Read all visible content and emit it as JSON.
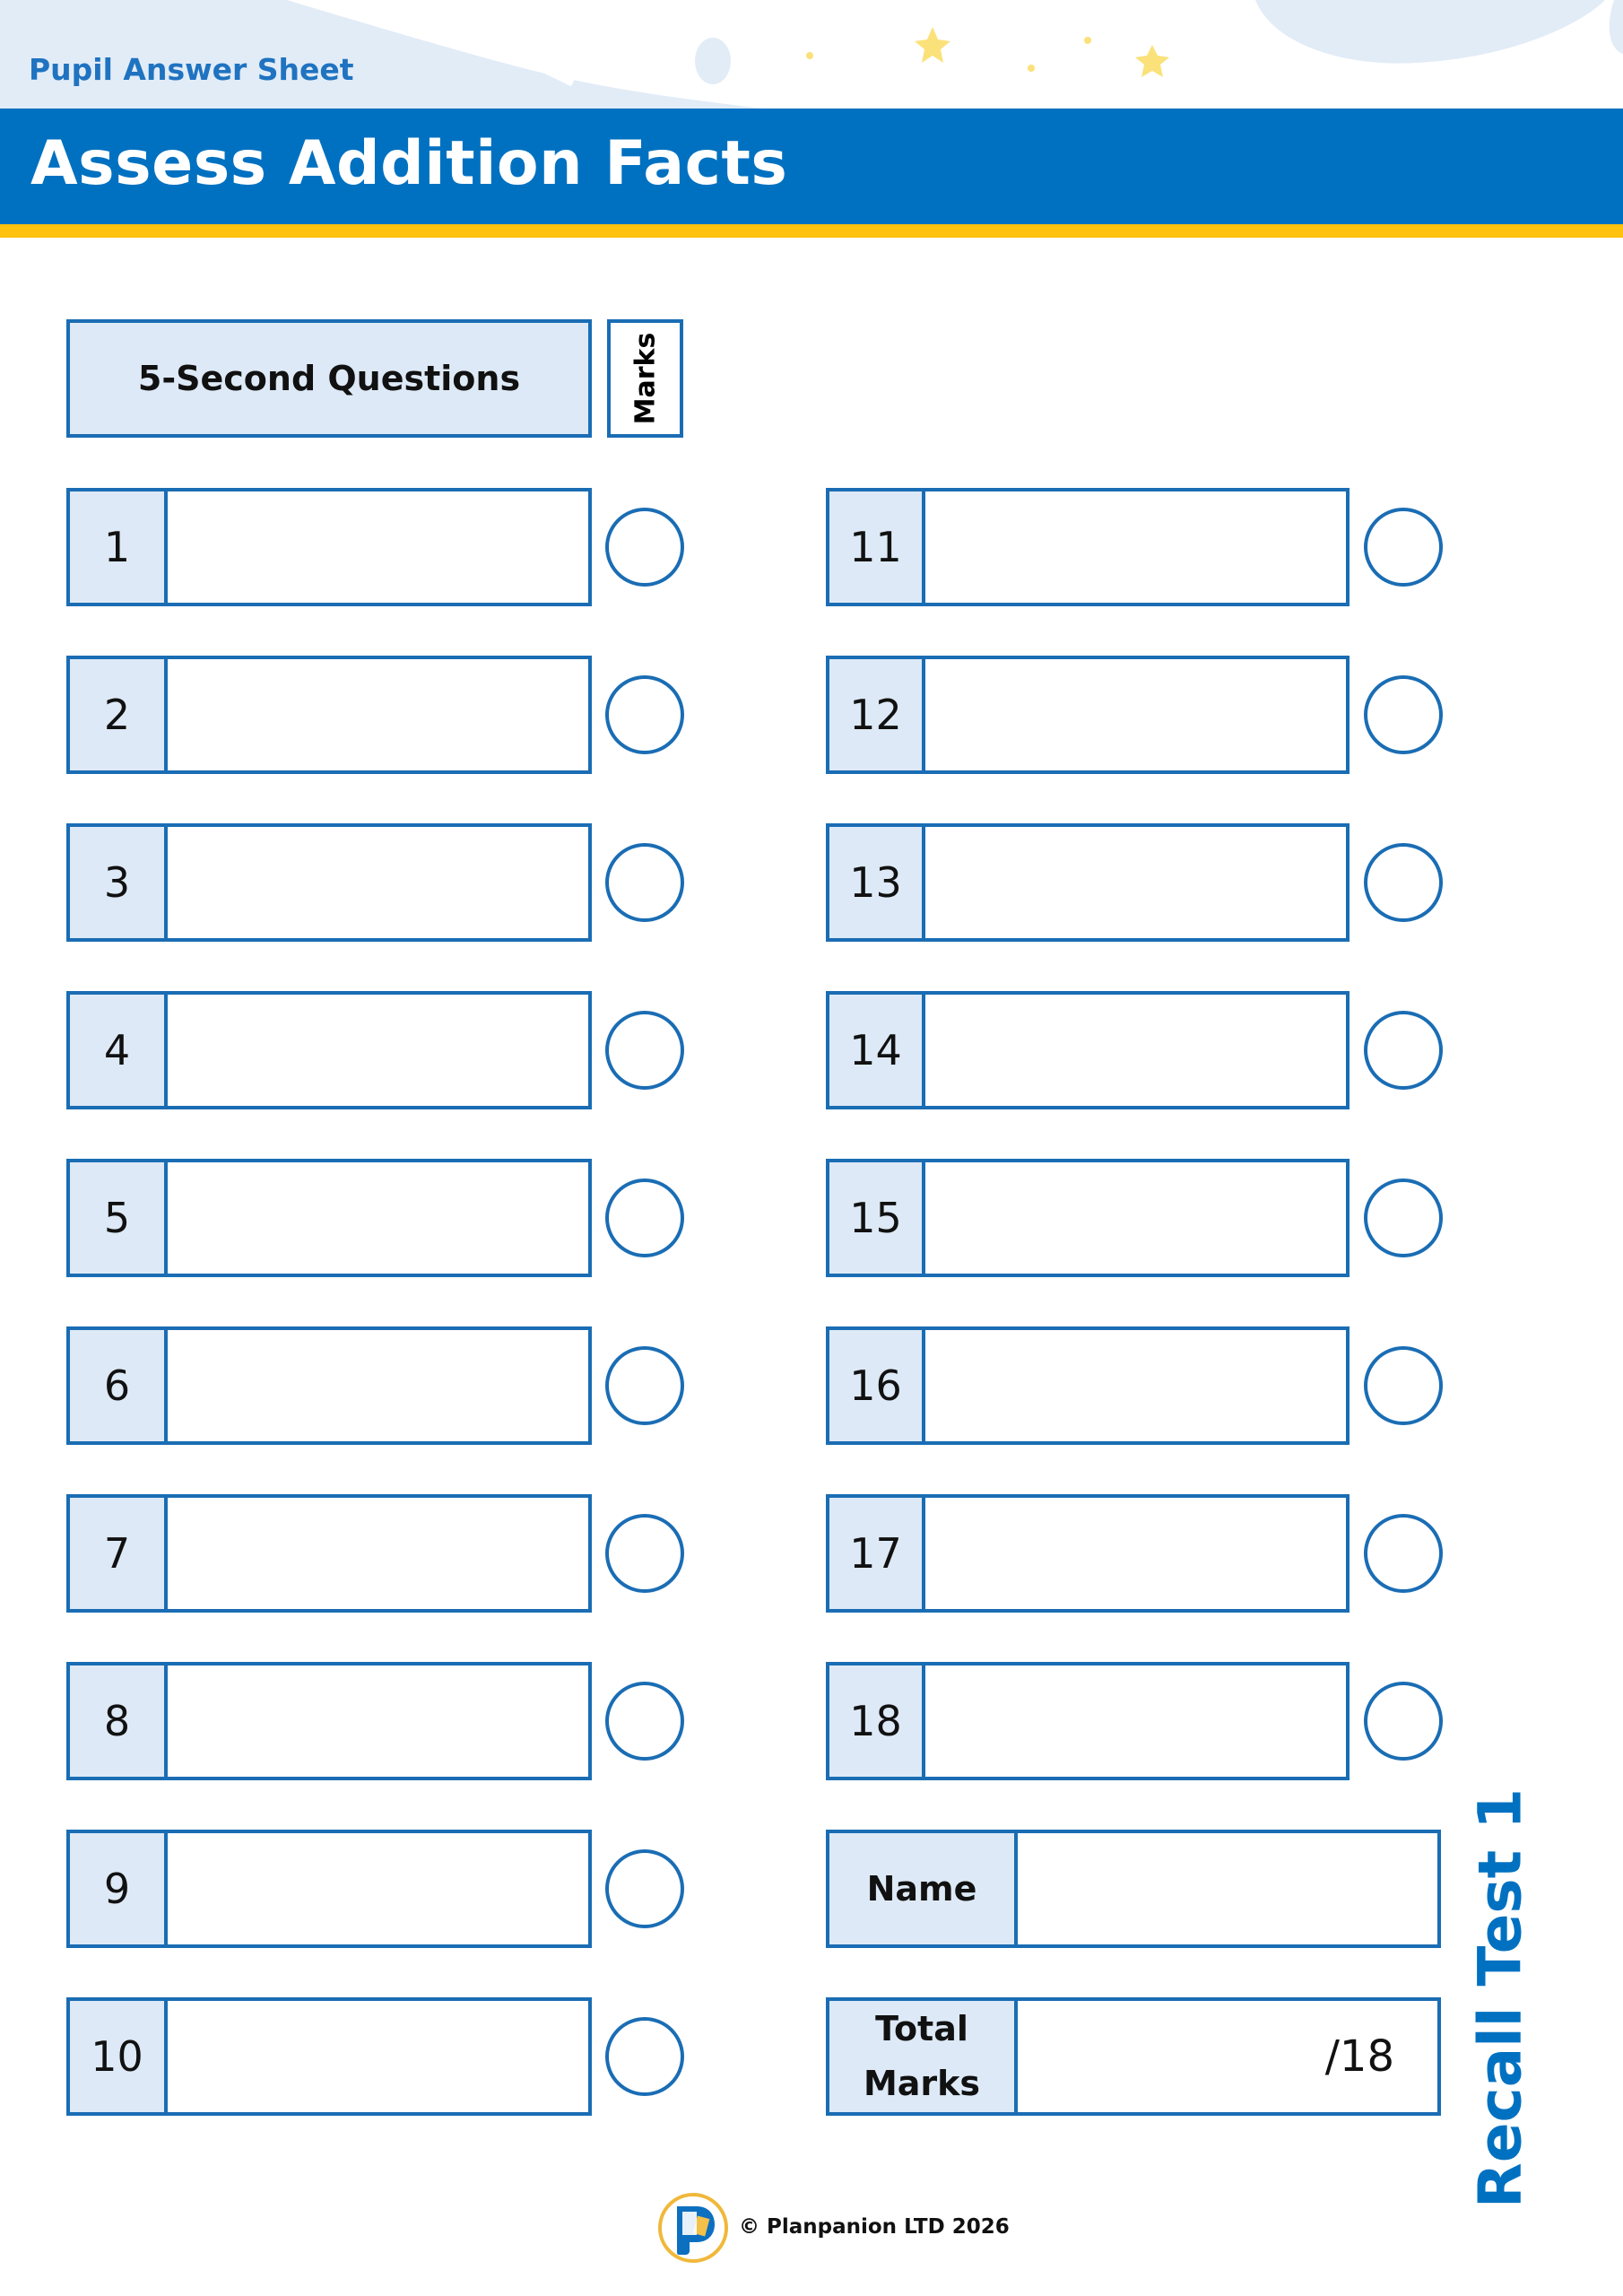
{
  "header": {
    "subtitle": "Pupil Answer Sheet",
    "title": "Assess Addition Facts"
  },
  "colors": {
    "brand_blue": "#0071c1",
    "accent_yellow": "#ffc20e",
    "cell_fill": "#dde9f6"
  },
  "table": {
    "questions_header": "5-Second Questions",
    "marks_header": "Marks"
  },
  "questions_left": [
    "1",
    "2",
    "3",
    "4",
    "5",
    "6",
    "7",
    "8",
    "9",
    "10"
  ],
  "questions_right": [
    "11",
    "12",
    "13",
    "14",
    "15",
    "16",
    "17",
    "18"
  ],
  "name_label": "Name",
  "total": {
    "label_line1": "Total",
    "label_line2": "Marks",
    "out_of": "/18"
  },
  "side_label": "Recall Test 1",
  "footer": {
    "copyright": "© Planpanion LTD 2026",
    "logo_icon": "planpanion-logo"
  }
}
